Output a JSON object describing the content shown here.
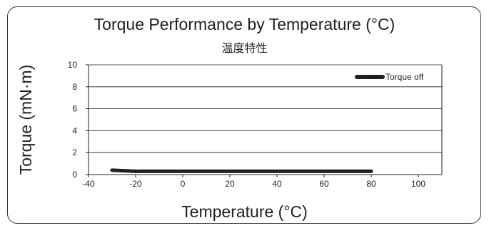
{
  "chart_data": {
    "type": "line",
    "title": "Torque Performance by Temperature (°C)",
    "subtitle": "温度特性",
    "xlabel": "Temperature (°C)",
    "ylabel": "Torque (mN·m)",
    "xlim": [
      -40,
      110
    ],
    "ylim": [
      0,
      10
    ],
    "x_ticks": [
      -40,
      -20,
      0,
      20,
      40,
      60,
      80,
      100
    ],
    "y_ticks": [
      0,
      2,
      4,
      6,
      8,
      10
    ],
    "grid": "horizontal",
    "legend": "top-right",
    "series": [
      {
        "name": "Torque off",
        "color": "#231f20",
        "x": [
          -30,
          -20,
          -20,
          80
        ],
        "y": [
          0.4,
          0.3,
          0.3,
          0.3
        ]
      }
    ]
  }
}
